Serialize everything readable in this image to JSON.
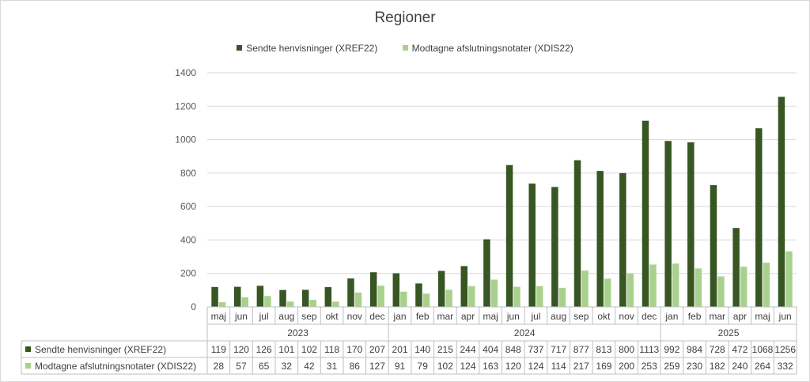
{
  "chart_data": {
    "type": "bar",
    "title": "Regioner",
    "categories": [
      "maj",
      "jun",
      "jul",
      "aug",
      "sep",
      "okt",
      "nov",
      "dec",
      "jan",
      "feb",
      "mar",
      "apr",
      "maj",
      "jun",
      "jul",
      "aug",
      "sep",
      "okt",
      "nov",
      "dec",
      "jan",
      "feb",
      "mar",
      "apr",
      "maj",
      "jun"
    ],
    "years": [
      {
        "label": "2023",
        "count": 8
      },
      {
        "label": "2024",
        "count": 12
      },
      {
        "label": "2025",
        "count": 6
      }
    ],
    "series": [
      {
        "name": "Sendte henvisninger (XREF22)",
        "color": "#375623",
        "values": [
          119,
          120,
          126,
          101,
          102,
          118,
          170,
          207,
          201,
          140,
          215,
          244,
          404,
          848,
          737,
          717,
          877,
          813,
          800,
          1113,
          992,
          984,
          728,
          472,
          1068,
          1256
        ]
      },
      {
        "name": "Modtagne afslutningsnotater (XDIS22)",
        "color": "#a9d18e",
        "values": [
          28,
          57,
          65,
          32,
          42,
          31,
          86,
          127,
          91,
          79,
          102,
          124,
          163,
          120,
          124,
          114,
          217,
          169,
          200,
          253,
          259,
          230,
          182,
          240,
          264,
          332
        ]
      }
    ],
    "ylim": [
      0,
      1400
    ],
    "yticks": [
      "0",
      "200",
      "400",
      "600",
      "800",
      "1000",
      "1200",
      "1400"
    ],
    "grid": true,
    "legend_position": "top",
    "data_table": true
  }
}
